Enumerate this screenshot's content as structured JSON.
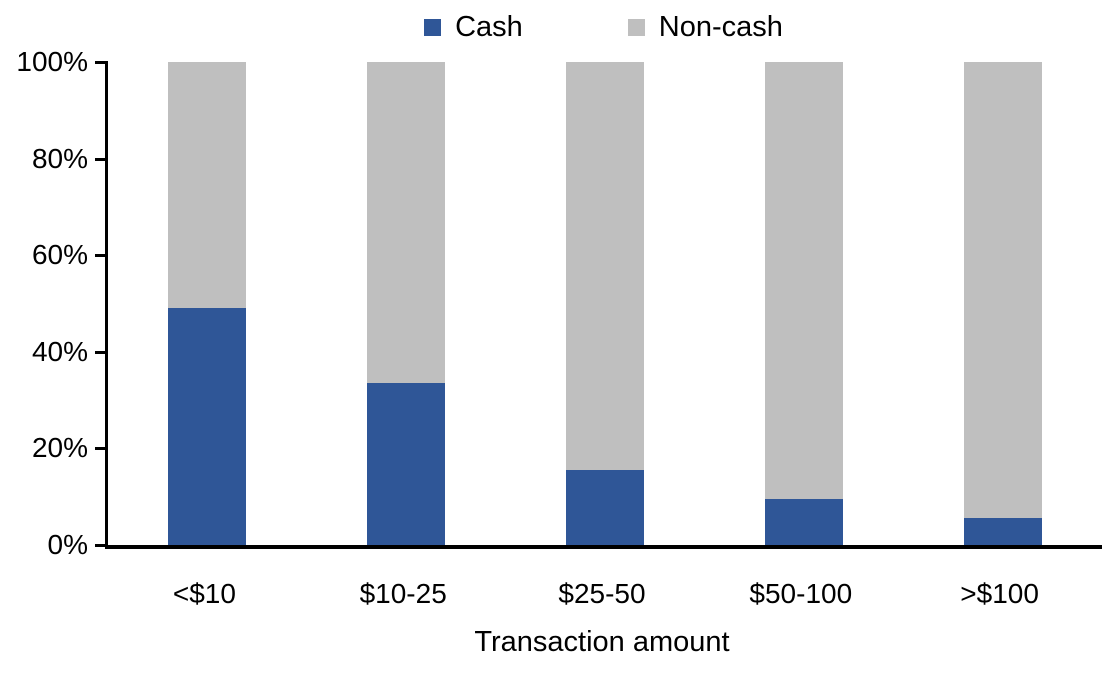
{
  "chart_data": {
    "type": "bar",
    "subtype": "stacked-100-percent",
    "title": "",
    "xlabel": "Transaction amount",
    "ylabel": "",
    "categories": [
      "<$10",
      "$10-25",
      "$25-50",
      "$50-100",
      ">$100"
    ],
    "series": [
      {
        "name": "Cash",
        "color": "#2F5697",
        "values": [
          49,
          33.5,
          15.5,
          9.5,
          5.5
        ]
      },
      {
        "name": "Non-cash",
        "color": "#BFBFBF",
        "values": [
          51,
          66.5,
          84.5,
          90.5,
          94.5
        ]
      }
    ],
    "ylim": [
      0,
      100
    ],
    "yticks": [
      "0%",
      "20%",
      "40%",
      "60%",
      "80%",
      "100%"
    ],
    "legend_position": "top-center",
    "grid": false,
    "axis_color": "#000000",
    "background_color": "#ffffff"
  }
}
